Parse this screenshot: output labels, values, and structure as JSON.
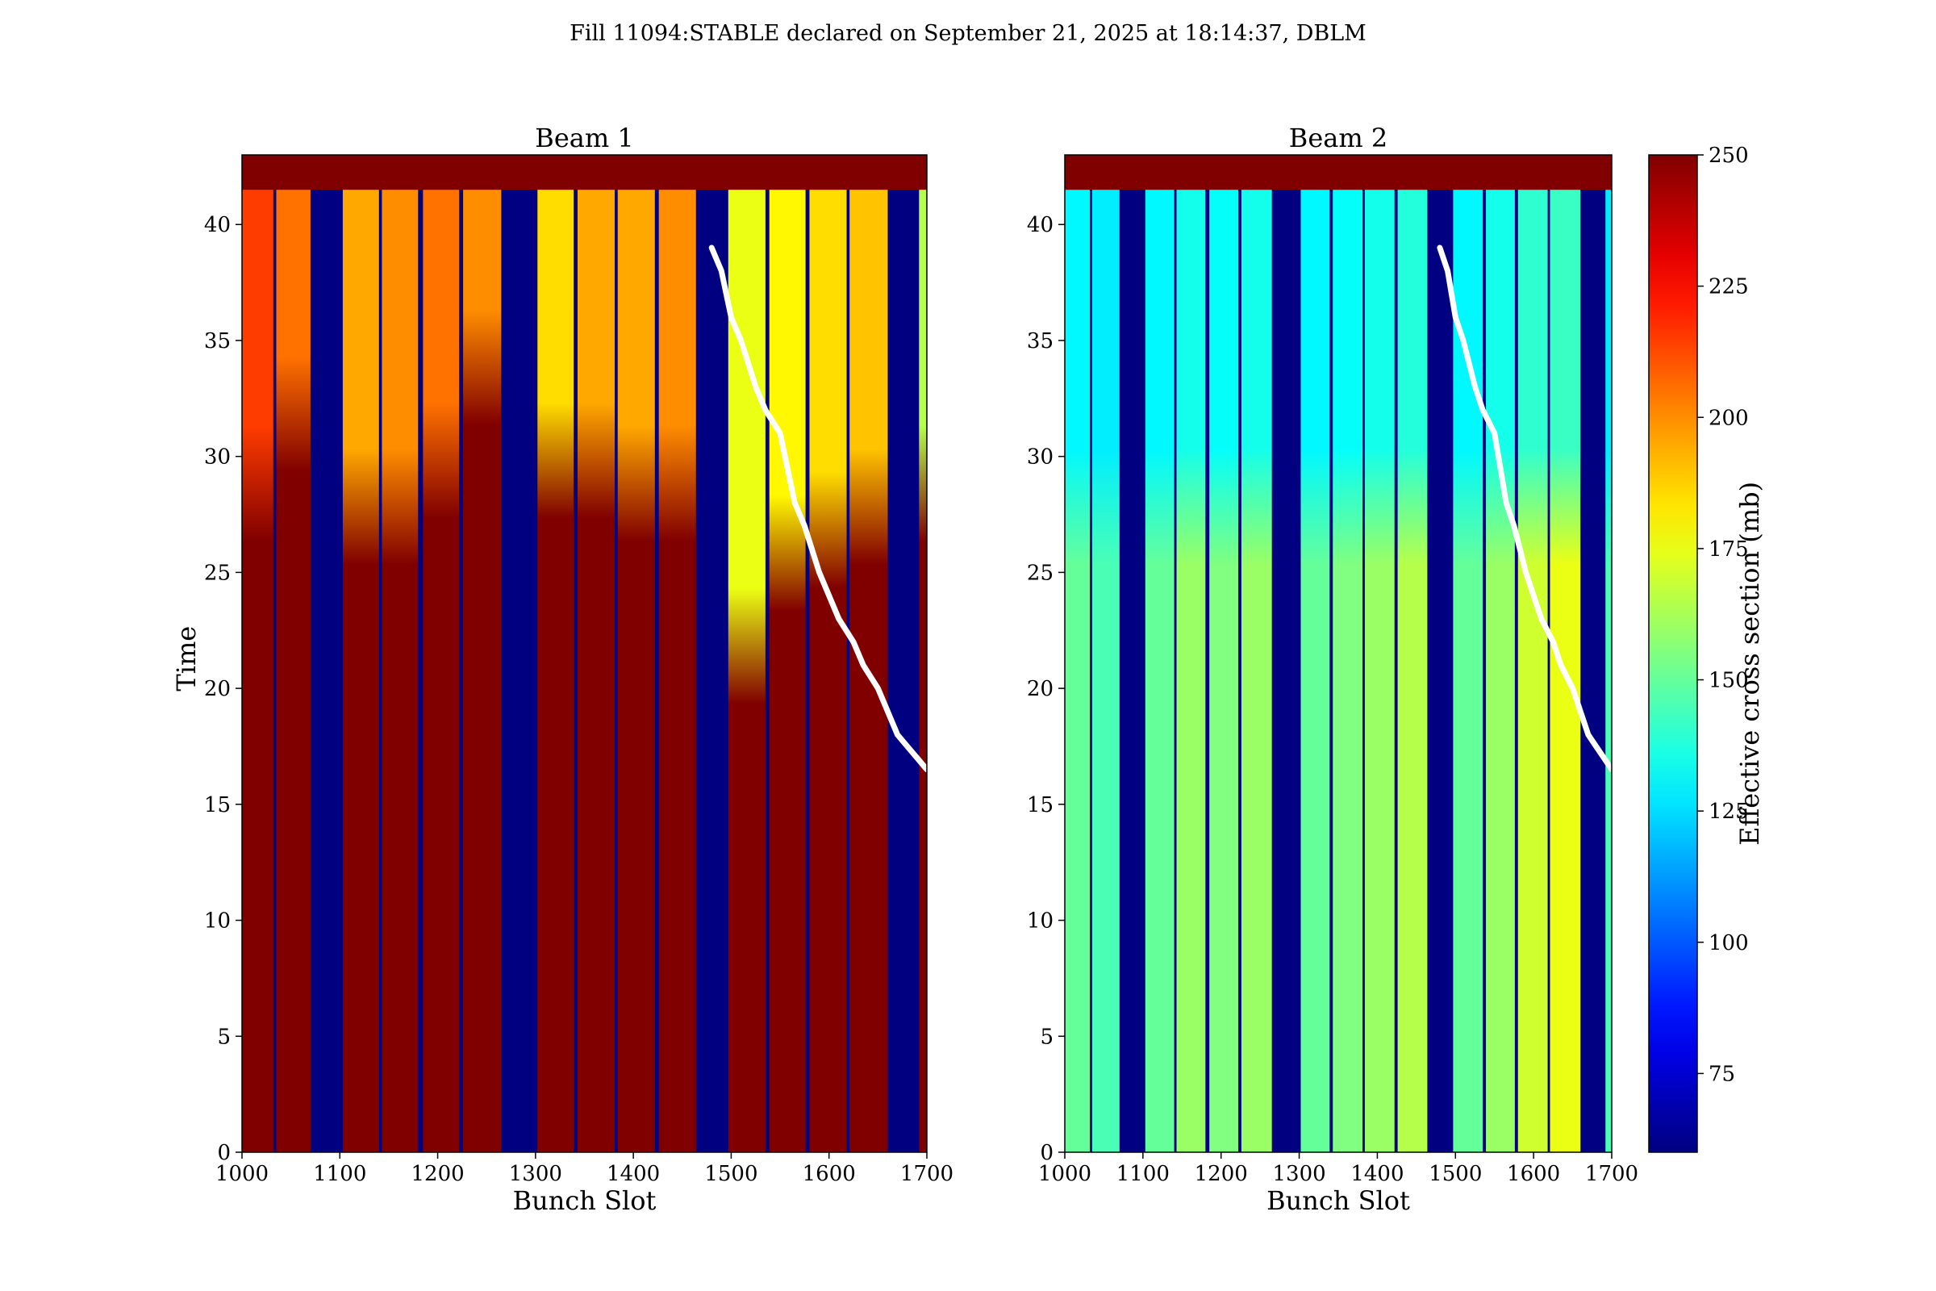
{
  "figure": {
    "title": "Fill 11094:STABLE declared on September 21, 2025 at 18:14:37, DBLM"
  },
  "chart_data": [
    {
      "type": "heatmap",
      "title": "Beam 1",
      "xlabel": "Bunch Slot",
      "ylabel": "Time",
      "xlim": [
        1000,
        1700
      ],
      "ylim": [
        0,
        43
      ],
      "xticks": [
        1000,
        1100,
        1200,
        1300,
        1400,
        1500,
        1600,
        1700
      ],
      "yticks": [
        0,
        5,
        10,
        15,
        20,
        25,
        30,
        35,
        40
      ],
      "trains": [
        {
          "start": 1000,
          "end": 1032,
          "v_early": 250,
          "v_late": 215,
          "turnover": 28
        },
        {
          "start": 1035,
          "end": 1070,
          "v_early": 250,
          "v_late": 205,
          "turnover": 31
        },
        {
          "start": 1103,
          "end": 1140,
          "v_early": 250,
          "v_late": 195,
          "turnover": 27
        },
        {
          "start": 1143,
          "end": 1180,
          "v_early": 250,
          "v_late": 200,
          "turnover": 27
        },
        {
          "start": 1185,
          "end": 1222,
          "v_early": 250,
          "v_late": 205,
          "turnover": 29
        },
        {
          "start": 1226,
          "end": 1265,
          "v_early": 250,
          "v_late": 200,
          "turnover": 33
        },
        {
          "start": 1302,
          "end": 1339,
          "v_early": 250,
          "v_late": 185,
          "turnover": 29
        },
        {
          "start": 1343,
          "end": 1381,
          "v_early": 250,
          "v_late": 195,
          "turnover": 29
        },
        {
          "start": 1384,
          "end": 1422,
          "v_early": 250,
          "v_late": 195,
          "turnover": 28
        },
        {
          "start": 1426,
          "end": 1464,
          "v_early": 250,
          "v_late": 200,
          "turnover": 28
        },
        {
          "start": 1497,
          "end": 1535,
          "v_early": 250,
          "v_late": 175,
          "turnover": 21
        },
        {
          "start": 1539,
          "end": 1576,
          "v_early": 250,
          "v_late": 180,
          "turnover": 25
        },
        {
          "start": 1580,
          "end": 1618,
          "v_early": 250,
          "v_late": 185,
          "turnover": 26
        },
        {
          "start": 1621,
          "end": 1660,
          "v_early": 250,
          "v_late": 190,
          "turnover": 27
        },
        {
          "start": 1692,
          "end": 1700,
          "v_early": 250,
          "v_late": 165,
          "turnover": 28
        }
      ],
      "gap_value": 60,
      "top_band": {
        "from": 41.5,
        "to": 43,
        "value": 250
      },
      "overlay_line": {
        "color": "#ffffff",
        "x": [
          1480,
          1490,
          1500,
          1510,
          1525,
          1535,
          1550,
          1560,
          1565,
          1575,
          1590,
          1600,
          1610,
          1625,
          1635,
          1650,
          1660,
          1670,
          1680,
          1690,
          1700
        ],
        "y": [
          39,
          38,
          36,
          35,
          33,
          32,
          31,
          29,
          28,
          27,
          25,
          24,
          23,
          22,
          21,
          20,
          19,
          18,
          17.5,
          17,
          16.5
        ]
      }
    },
    {
      "type": "heatmap",
      "title": "Beam 2",
      "xlabel": "Bunch Slot",
      "ylabel": "",
      "xlim": [
        1000,
        1700
      ],
      "ylim": [
        0,
        43
      ],
      "xticks": [
        1000,
        1100,
        1200,
        1300,
        1400,
        1500,
        1600,
        1700
      ],
      "yticks": [
        0,
        5,
        10,
        15,
        20,
        25,
        30,
        35,
        40
      ],
      "trains": [
        {
          "start": 1000,
          "end": 1032,
          "v_early": 150,
          "v_late": 130,
          "turnover": 27
        },
        {
          "start": 1035,
          "end": 1070,
          "v_early": 145,
          "v_late": 128,
          "turnover": 27
        },
        {
          "start": 1103,
          "end": 1140,
          "v_early": 150,
          "v_late": 130,
          "turnover": 27
        },
        {
          "start": 1143,
          "end": 1180,
          "v_early": 160,
          "v_late": 135,
          "turnover": 27
        },
        {
          "start": 1185,
          "end": 1222,
          "v_early": 155,
          "v_late": 132,
          "turnover": 27
        },
        {
          "start": 1226,
          "end": 1265,
          "v_early": 160,
          "v_late": 135,
          "turnover": 27
        },
        {
          "start": 1302,
          "end": 1339,
          "v_early": 150,
          "v_late": 130,
          "turnover": 27
        },
        {
          "start": 1343,
          "end": 1381,
          "v_early": 155,
          "v_late": 132,
          "turnover": 27
        },
        {
          "start": 1384,
          "end": 1422,
          "v_early": 160,
          "v_late": 135,
          "turnover": 27
        },
        {
          "start": 1426,
          "end": 1464,
          "v_early": 165,
          "v_late": 138,
          "turnover": 27
        },
        {
          "start": 1497,
          "end": 1535,
          "v_early": 150,
          "v_late": 130,
          "turnover": 27
        },
        {
          "start": 1539,
          "end": 1576,
          "v_early": 160,
          "v_late": 135,
          "turnover": 27
        },
        {
          "start": 1580,
          "end": 1618,
          "v_early": 170,
          "v_late": 140,
          "turnover": 27
        },
        {
          "start": 1621,
          "end": 1660,
          "v_early": 175,
          "v_late": 142,
          "turnover": 27
        },
        {
          "start": 1692,
          "end": 1700,
          "v_early": 145,
          "v_late": 128,
          "turnover": 27
        }
      ],
      "gap_value": 60,
      "top_band": {
        "from": 41.5,
        "to": 43,
        "value": 250
      },
      "overlay_line": {
        "color": "#ffffff",
        "x": [
          1480,
          1490,
          1500,
          1510,
          1525,
          1535,
          1550,
          1560,
          1565,
          1575,
          1590,
          1600,
          1610,
          1625,
          1635,
          1650,
          1660,
          1670,
          1680,
          1690,
          1700
        ],
        "y": [
          39,
          38,
          36,
          35,
          33,
          32,
          31,
          29,
          28,
          27,
          25,
          24,
          23,
          22,
          21,
          20,
          19,
          18,
          17.5,
          17,
          16.5
        ]
      }
    }
  ],
  "colorbar": {
    "label": "Effective cross section (mb)",
    "vmin": 60,
    "vmax": 250,
    "ticks": [
      75,
      100,
      125,
      150,
      175,
      200,
      225,
      250
    ],
    "colormap": "jet"
  }
}
